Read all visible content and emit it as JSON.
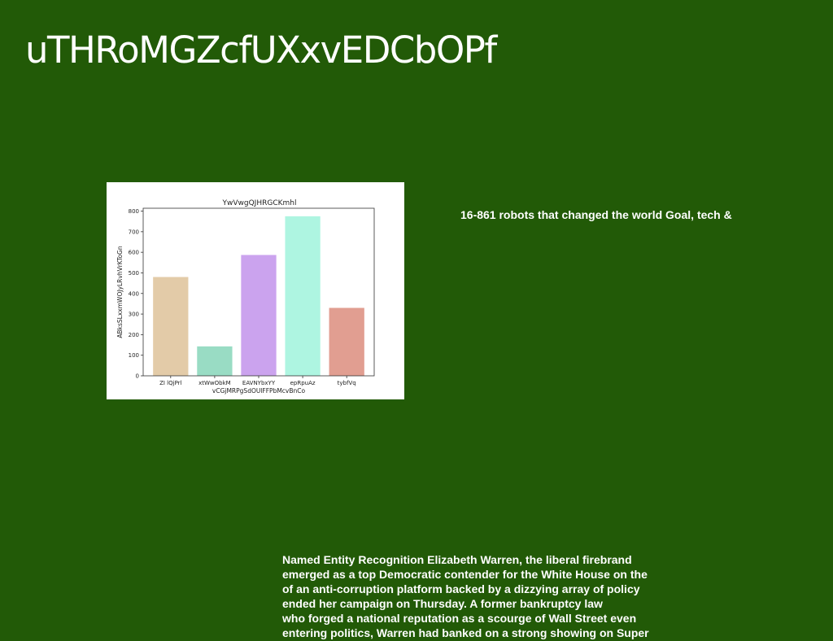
{
  "page": {
    "title": "uTHRoMGZcfUXxvEDCbOPf",
    "side_note": "16-861 robots that changed the world Goal, tech &",
    "body_lines": [
      "Named Entity Recognition Elizabeth Warren, the liberal firebrand",
      "emerged as a top Democratic contender for the White House on the",
      "of an anti-corruption platform backed by a dizzying array of policy",
      "ended her campaign on Thursday. A former bankruptcy law",
      "who forged a national reputation as a scourge of Wall Street even",
      "entering politics, Warren had banked on a strong showing on Super"
    ]
  },
  "colors": {
    "background": "#225a07",
    "text": "#ffffff"
  },
  "chart_data": {
    "type": "bar",
    "title": "YwVwgQJHRGCKmhl",
    "xlabel": "vCGjMRPgSdOUlFFPbMcvBnCo",
    "ylabel": "ABksSLxxmWOJyLRvhVrKToGn",
    "categories": [
      "ZI lQjPrl",
      "xtWwObkM",
      "EAVNYbxYY",
      "epRpuAz",
      "tybfVq"
    ],
    "values": [
      480,
      143,
      587,
      775,
      330
    ],
    "colors": [
      "#e3cba8",
      "#99dcc4",
      "#cba3ee",
      "#aef5e1",
      "#e19e91"
    ],
    "ylim": [
      0,
      800
    ],
    "yticks": [
      0,
      100,
      200,
      300,
      400,
      500,
      600,
      700,
      800
    ],
    "grid": false,
    "legend": "none"
  }
}
